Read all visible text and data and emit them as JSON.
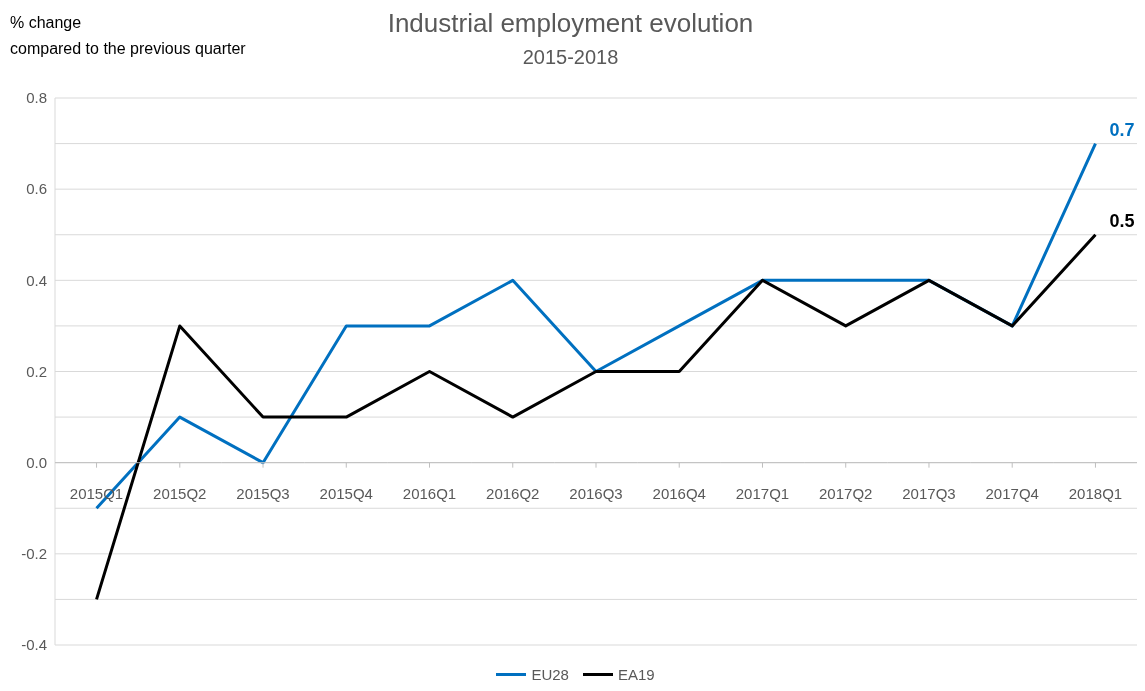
{
  "chart_data": {
    "type": "line",
    "title": "Industrial employment evolution",
    "subtitle": "2015-2018",
    "ylabel": "% change\ncompared to the previous quarter",
    "categories": [
      "2015Q1",
      "2015Q2",
      "2015Q3",
      "2015Q4",
      "2016Q1",
      "2016Q2",
      "2016Q3",
      "2016Q4",
      "2017Q1",
      "2017Q2",
      "2017Q3",
      "2017Q4",
      "2018Q1"
    ],
    "series": [
      {
        "name": "EU28",
        "color": "#0070c0",
        "values": [
          -0.1,
          0.1,
          0.0,
          0.3,
          0.3,
          0.4,
          0.2,
          0.3,
          0.4,
          0.4,
          0.4,
          0.3,
          0.7
        ],
        "value_labels": [
          null,
          null,
          null,
          null,
          null,
          null,
          null,
          null,
          null,
          null,
          null,
          null,
          "0.7"
        ]
      },
      {
        "name": "EA19",
        "color": "#000000",
        "values": [
          -0.3,
          0.3,
          0.1,
          0.1,
          0.2,
          0.1,
          0.2,
          0.2,
          0.4,
          0.3,
          0.4,
          0.3,
          0.5
        ],
        "value_labels": [
          null,
          null,
          null,
          null,
          null,
          null,
          null,
          null,
          null,
          null,
          null,
          null,
          "0.5"
        ]
      }
    ],
    "ylim": [
      -0.4,
      0.8
    ],
    "yticks": [
      -0.4,
      {
        "value": -0.3,
        "label": null
      },
      -0.2,
      {
        "value": -0.1,
        "label": null
      },
      {
        "value": 0,
        "label": "0.0"
      },
      {
        "value": 0.1,
        "label": null
      },
      0.2,
      {
        "value": 0.3,
        "label": null
      },
      0.4,
      {
        "value": 0.5,
        "label": null
      },
      0.6,
      {
        "value": 0.7,
        "label": null
      },
      0.8
    ],
    "grid": "y",
    "legend": "bottom",
    "marker": "none",
    "line_style": "solid"
  }
}
